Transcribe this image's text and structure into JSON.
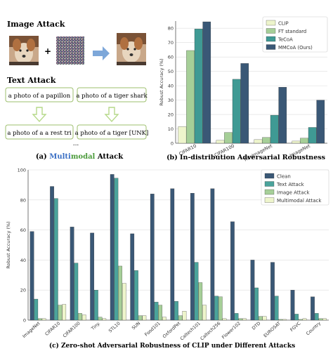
{
  "panel_a": {
    "image_attack_title": "Image Attack",
    "plus": "+",
    "text_attack_title": "Text Attack",
    "texts": [
      "a photo of a papillon",
      "a photo of a tiger shark",
      "a photo of a a rest tri",
      "a photo of a tiger [UNK]"
    ],
    "ellipsis": "...",
    "caption_prefix": "(a) ",
    "caption_multi": "Multi",
    "caption_modal": "modal",
    "caption_suffix": " Attack",
    "colors": {
      "image_title": "#4a6fa5",
      "text_title": "#6a9a3a",
      "arrow": "#7da7d9",
      "text_arrow": "#b6d98a",
      "box_border": "#9dbf6e"
    }
  },
  "chart_data": [
    {
      "type": "bar",
      "caption": "(b) In-distribution Adversarial Robustness",
      "ylabel": "Robust Accuracy (%)",
      "ylim": [
        0,
        85
      ],
      "yticks": [
        0,
        10,
        20,
        30,
        40,
        50,
        60,
        70,
        80
      ],
      "categories": [
        "CIFAR10",
        "CIFAR100",
        "TinyImageNet",
        "ImageNet"
      ],
      "legend_position": "top-right",
      "grid": true,
      "series": [
        {
          "name": "CLIP",
          "color": "#eef5cc",
          "values": [
            11.5,
            2.0,
            2.5,
            1.5
          ]
        },
        {
          "name": "FT standard",
          "color": "#a6cf98",
          "values": [
            64.5,
            7.5,
            4.0,
            3.5
          ]
        },
        {
          "name": "TeCoA",
          "color": "#3f9a94",
          "values": [
            79.5,
            44.5,
            19.5,
            11.0
          ]
        },
        {
          "name": "MMCoA (Ours)",
          "color": "#3a5876",
          "values": [
            84.5,
            55.5,
            39.0,
            30.0
          ]
        }
      ]
    },
    {
      "type": "bar",
      "caption": "(c) Zero-shot Adversarial Robustness of CLIP under Different Attacks",
      "ylabel": "Robust Accuracy (%)",
      "ylim": [
        0,
        100
      ],
      "yticks": [
        0,
        20,
        40,
        60,
        80,
        100
      ],
      "categories": [
        "ImageNet",
        "CIFAR10",
        "CIFAR100",
        "Tiny.",
        "STL10",
        "SUN",
        "Food101",
        "OxfordPet",
        "Caltech101",
        "Caltech256",
        "Flower102",
        "DTD",
        "EUROSAT",
        "FGVC",
        "Country"
      ],
      "legend_position": "top-right",
      "grid": true,
      "series": [
        {
          "name": "Clean",
          "color": "#3a5876",
          "values": [
            59,
            89,
            62,
            58,
            97,
            57.5,
            84,
            87.5,
            84.5,
            87.5,
            65.5,
            40,
            38.5,
            20,
            15.5
          ]
        },
        {
          "name": "Text Attack",
          "color": "#4aa39b",
          "values": [
            14,
            81,
            38,
            20,
            94.5,
            33,
            12,
            12.5,
            38.5,
            16,
            4.5,
            21.5,
            16,
            4,
            4.5
          ]
        },
        {
          "name": "Image Attack",
          "color": "#a6cf98",
          "values": [
            1,
            10,
            4.5,
            2,
            36,
            3,
            10,
            3,
            25,
            15.5,
            1,
            2.5,
            0.5,
            0.5,
            1
          ]
        },
        {
          "name": "Multimodal Attack",
          "color": "#eef5cc",
          "values": [
            1,
            10.5,
            3.5,
            1,
            24.5,
            3,
            2,
            6,
            10,
            1,
            1,
            2.5,
            0.5,
            1,
            1
          ]
        }
      ]
    }
  ]
}
